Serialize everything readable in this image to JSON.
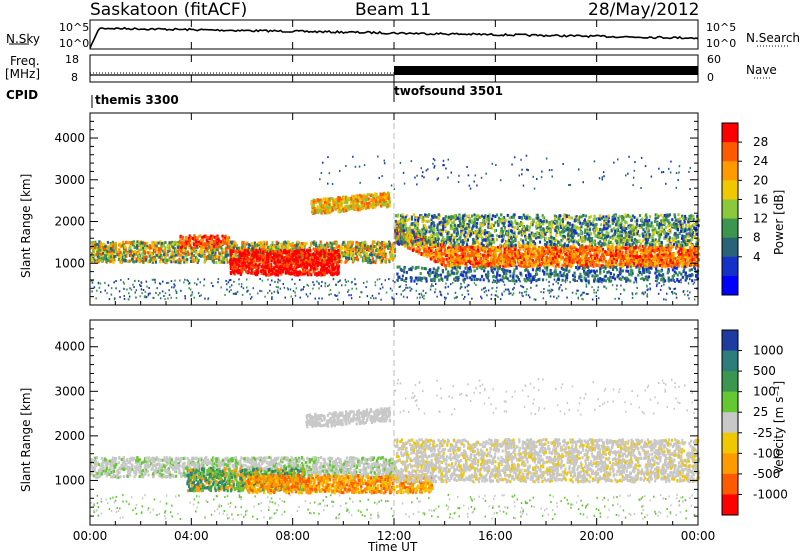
{
  "header": {
    "station": "Saskatoon (fitACF)",
    "beam": "Beam 11",
    "date": "28/May/2012"
  },
  "strips": {
    "nsky_label": "N.Sky",
    "nsky_ticks": [
      "10^5",
      "10^0"
    ],
    "nsearch_label": "N.Search",
    "nsearch_ticks": [
      "10^5",
      "10^0"
    ],
    "freq_label": "Freq.",
    "freq_unit": "[MHz]",
    "freq_ticks": [
      "18",
      "8"
    ],
    "nave_label": "Nave",
    "nave_ticks": [
      "60",
      "0"
    ],
    "cpid_label": "CPID",
    "cpid_segments": [
      {
        "name": "themis 3300",
        "start": "00:00"
      },
      {
        "name": "twofsound 3501",
        "start": "12:00"
      }
    ]
  },
  "chart_data": [
    {
      "type": "heatmap",
      "name": "power",
      "ylabel": "Slant Range [km]",
      "yticks": [
        1000,
        2000,
        3000,
        4000
      ],
      "ylim": [
        0,
        4600
      ],
      "x": [
        "00:00",
        "04:00",
        "08:00",
        "12:00",
        "16:00",
        "20:00",
        "00:00"
      ],
      "colorbar": {
        "label": "Power [dB]",
        "ticks": [
          "28",
          "24",
          "20",
          "16",
          "12",
          "8",
          "4"
        ],
        "colors": [
          "#ff0000",
          "#ff5a00",
          "#ff9a00",
          "#f0c800",
          "#8cc83c",
          "#3c9650",
          "#286478",
          "#1432c8",
          "#0000ff"
        ]
      },
      "bands": [
        {
          "hours": [
            0,
            12
          ],
          "range_km": [
            1050,
            1500
          ],
          "level": "12-20"
        },
        {
          "hours": [
            5.5,
            9.5
          ],
          "range_km": [
            800,
            1300
          ],
          "level": "28"
        },
        {
          "hours": [
            8.5,
            11.7
          ],
          "range_km": [
            2200,
            2600
          ],
          "level": "16-24"
        },
        {
          "hours": [
            12,
            24
          ],
          "range_km": [
            1000,
            1400
          ],
          "level": "20-28"
        }
      ]
    },
    {
      "type": "heatmap",
      "name": "velocity",
      "ylabel": "Slant Range [km]",
      "yticks": [
        1000,
        2000,
        3000,
        4000
      ],
      "ylim": [
        0,
        4600
      ],
      "x": [
        "00:00",
        "04:00",
        "08:00",
        "12:00",
        "16:00",
        "20:00",
        "00:00"
      ],
      "xlabel": "Time UT",
      "colorbar": {
        "label": "Velocity [m s⁻¹]",
        "ticks": [
          "1000",
          "500",
          "100",
          "25",
          "-25",
          "-100",
          "-500",
          "-1000"
        ],
        "colors": [
          "#1e3ca0",
          "#2d7d7d",
          "#3c9650",
          "#64c832",
          "#c8c8c8",
          "#f0c800",
          "#ff9a00",
          "#ff5a00",
          "#ff0000"
        ]
      },
      "bands": [
        {
          "hours": [
            0,
            12
          ],
          "range_km": [
            1100,
            1500
          ],
          "level": "ground-scatter"
        },
        {
          "hours": [
            4,
            8.5
          ],
          "range_km": [
            800,
            1300
          ],
          "level": "100-500"
        },
        {
          "hours": [
            6,
            13.5
          ],
          "range_km": [
            800,
            1100
          ],
          "level": "-100 to -500"
        },
        {
          "hours": [
            12,
            24
          ],
          "range_km": [
            1000,
            1900
          ],
          "level": "ground-scatter"
        }
      ]
    }
  ]
}
